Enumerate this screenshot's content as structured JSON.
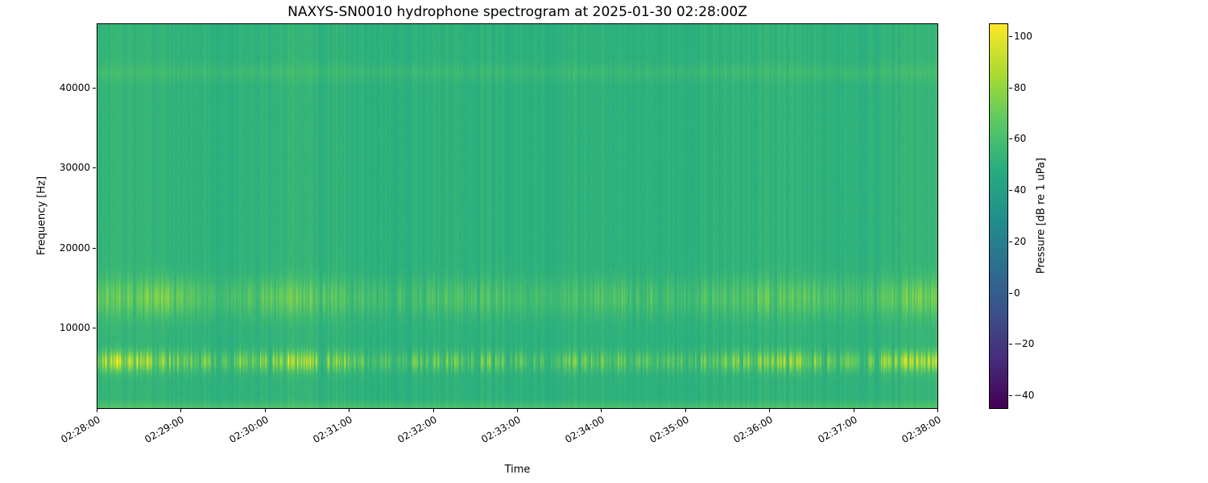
{
  "figure": {
    "background": "#ffffff",
    "text_color": "#000000"
  },
  "chart_data": {
    "type": "heatmap",
    "subtype": "spectrogram",
    "title": "NAXYS-SN0010 hydrophone spectrogram at 2025-01-30 02:28:00Z",
    "xlabel": "Time",
    "ylabel": "Frequency [Hz]",
    "x_ticklabels": [
      "02:28:00",
      "02:29:00",
      "02:30:00",
      "02:31:00",
      "02:32:00",
      "02:33:00",
      "02:34:00",
      "02:35:00",
      "02:36:00",
      "02:37:00",
      "02:38:00"
    ],
    "y_ticks": [
      {
        "value": 10000,
        "label": "10000"
      },
      {
        "value": 20000,
        "label": "20000"
      },
      {
        "value": 30000,
        "label": "30000"
      },
      {
        "value": 40000,
        "label": "40000"
      }
    ],
    "ylim": [
      0,
      48000
    ],
    "colormap": "viridis",
    "colorbar": {
      "label": "Pressure [dB re 1 uPa]",
      "vmin": -45,
      "vmax": 105,
      "ticks": [
        {
          "value": 100,
          "label": "100"
        },
        {
          "value": 80,
          "label": "80"
        },
        {
          "value": 60,
          "label": "60"
        },
        {
          "value": 40,
          "label": "40"
        },
        {
          "value": 20,
          "label": "20"
        },
        {
          "value": 0,
          "label": "0"
        },
        {
          "value": -20,
          "label": "−20"
        },
        {
          "value": -40,
          "label": "−40"
        }
      ]
    },
    "background_level_db": 47,
    "features": {
      "low_band": {
        "center_hz": 5800,
        "sigma_hz": 1200,
        "max_burst_db": 46,
        "desc": "strong intermittent vertical click bursts, bright yellow-green"
      },
      "mid_band": {
        "center_hz": 13800,
        "sigma_hz": 2300,
        "max_burst_db": 26,
        "desc": "moderate vertical burst streaks, light green"
      },
      "bottom_band": {
        "cutoff_hz": 1200,
        "boost_db": 9,
        "desc": "brighter band at lowest frequencies"
      },
      "tonal_line": {
        "center_hz": 42000,
        "sigma_hz": 1100,
        "boost_db": 3.2,
        "desc": "faint horizontal line near 42 kHz"
      },
      "vertical_striping": {
        "max_db": 8,
        "desc": "faint full-height vertical striping aligned with bursts"
      }
    }
  }
}
